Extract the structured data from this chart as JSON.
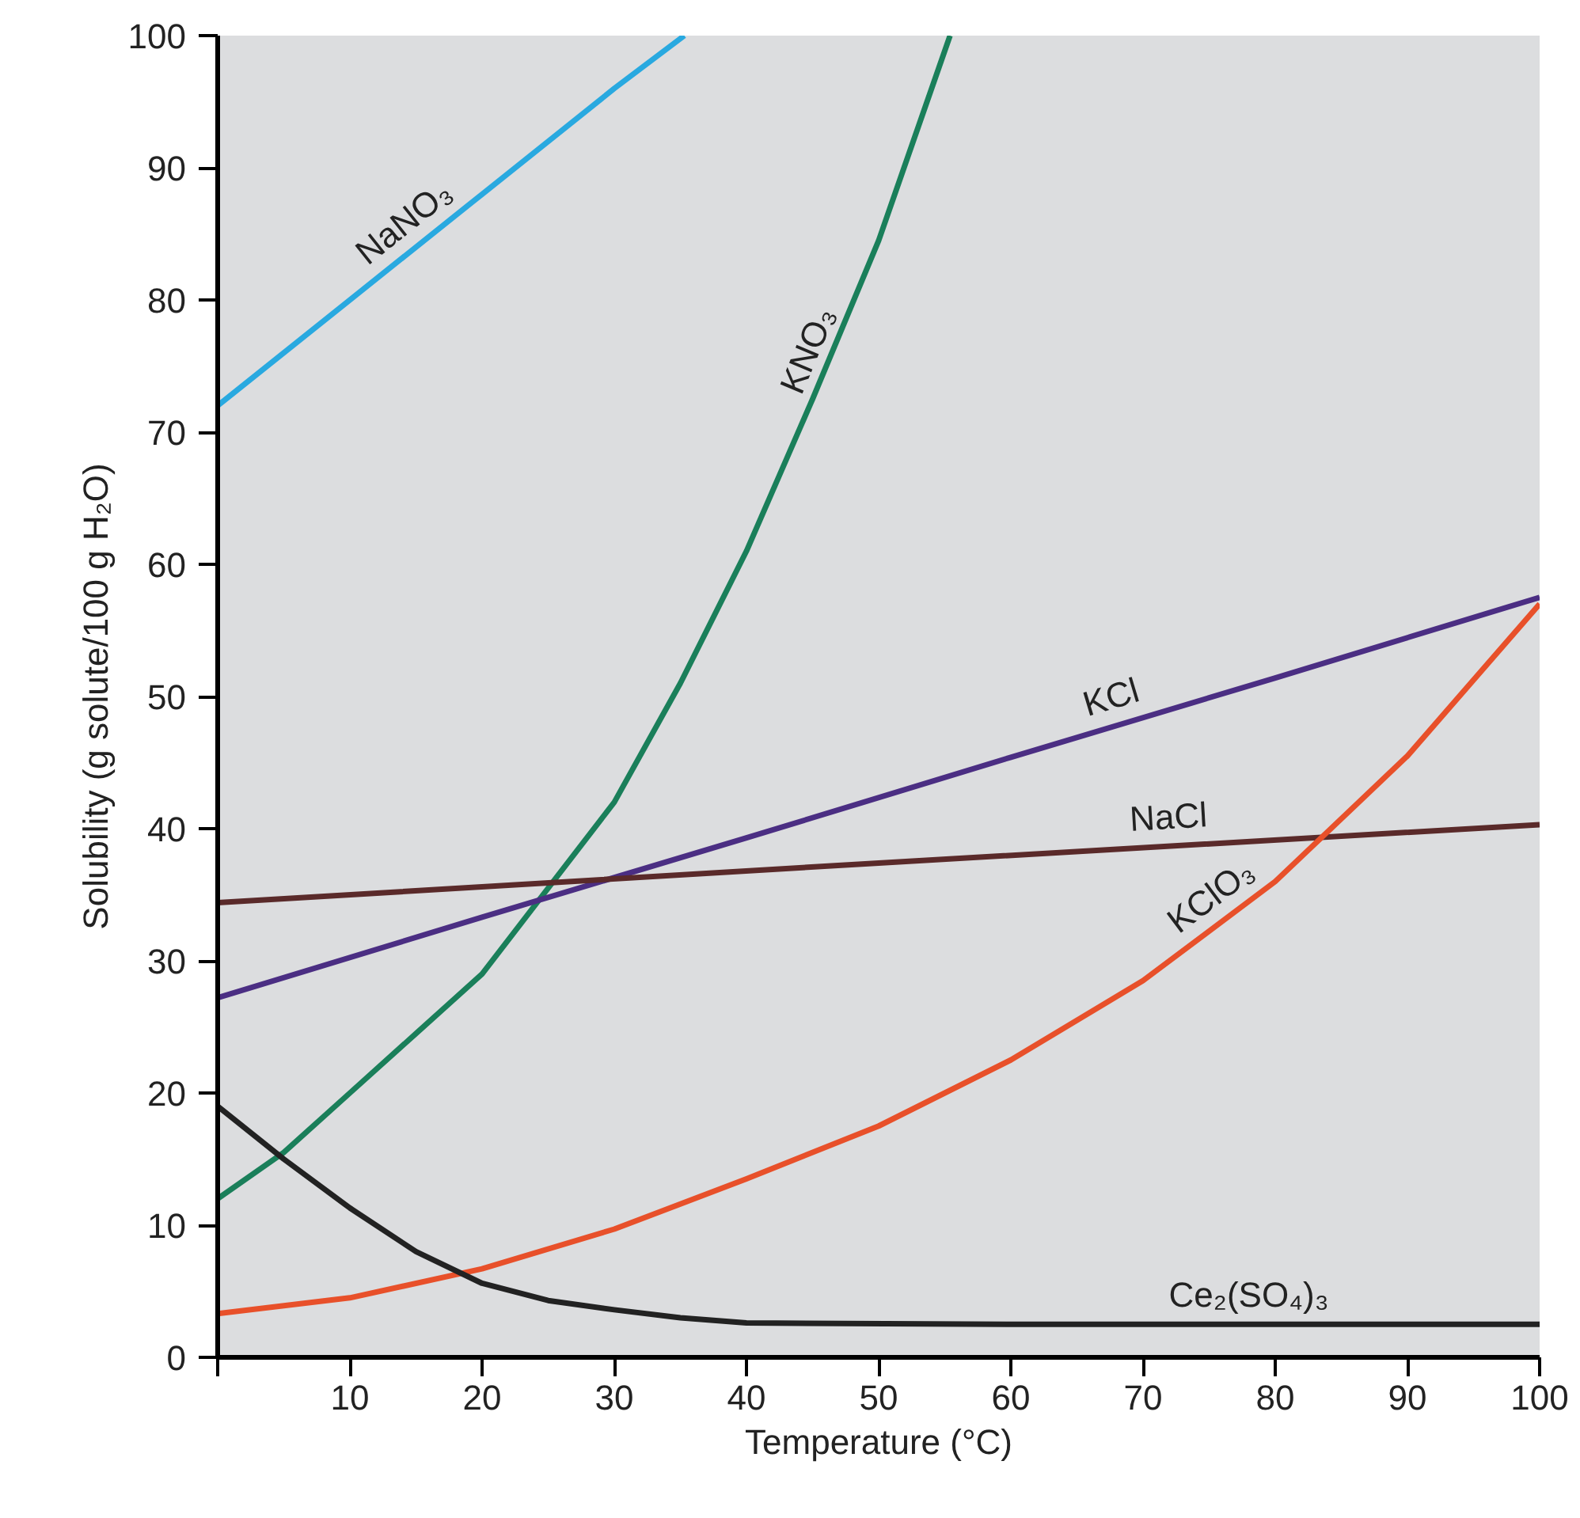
{
  "chart_data": {
    "type": "line",
    "xlabel": "Temperature (°C)",
    "ylabel": "Solubility (g solute/100 g H₂O)",
    "xlim": [
      0,
      100
    ],
    "ylim": [
      0,
      100
    ],
    "xticks": [
      {
        "value": 0,
        "label": null
      },
      10,
      20,
      30,
      40,
      50,
      60,
      70,
      80,
      90,
      100
    ],
    "yticks": [
      0,
      10,
      20,
      30,
      40,
      50,
      60,
      70,
      80,
      90,
      100
    ],
    "grid": false,
    "series": [
      {
        "name": "NaNO₃",
        "color": "#29a9e0",
        "x": [
          0,
          10,
          20,
          30,
          35.3
        ],
        "values": [
          72,
          80,
          88,
          96,
          100
        ]
      },
      {
        "name": "KNO₃",
        "color": "#1a7f5a",
        "x": [
          0,
          5,
          10,
          15,
          20,
          25,
          30,
          35,
          40,
          45,
          50,
          55.4
        ],
        "values": [
          12,
          15.5,
          20,
          24.5,
          29,
          35.5,
          42,
          51,
          61,
          72.5,
          84.5,
          100
        ]
      },
      {
        "name": "KCl",
        "color": "#4b2e83",
        "x": [
          0,
          20,
          40,
          60,
          80,
          100
        ],
        "values": [
          27.2,
          33.3,
          39.3,
          45.4,
          51.4,
          57.5
        ]
      },
      {
        "name": "NaCl",
        "color": "#5a2a2a",
        "x": [
          0,
          50,
          100
        ],
        "values": [
          34.4,
          37.4,
          40.3
        ]
      },
      {
        "name": "KClO₃",
        "color": "#e8502a",
        "x": [
          0,
          10,
          20,
          30,
          40,
          50,
          60,
          70,
          80,
          90,
          100
        ],
        "values": [
          3.3,
          4.5,
          6.7,
          9.7,
          13.5,
          17.5,
          22.5,
          28.5,
          36,
          45.5,
          57
        ]
      },
      {
        "name": "Ce₂(SO₄)₃",
        "color": "#222222",
        "x": [
          0,
          5,
          10,
          15,
          20,
          25,
          30,
          35,
          40,
          60,
          100
        ],
        "values": [
          19,
          15,
          11.3,
          8,
          5.6,
          4.3,
          3.6,
          3,
          2.6,
          2.5,
          2.5
        ]
      }
    ]
  }
}
